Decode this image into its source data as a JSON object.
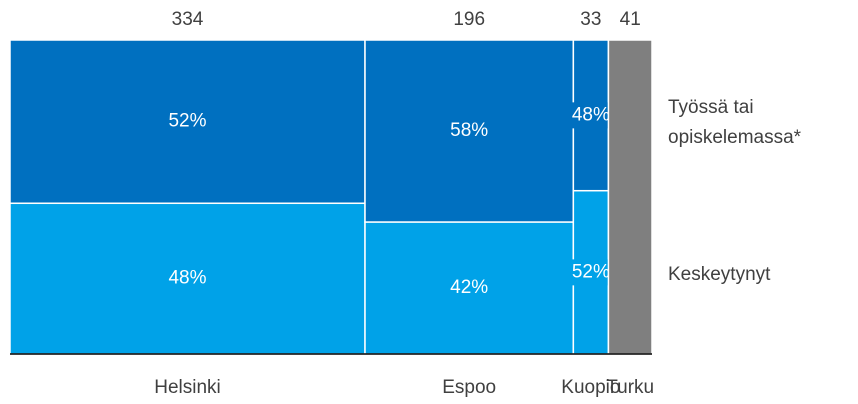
{
  "chart_data": {
    "type": "marimekko",
    "categories": [
      "Helsinki",
      "Espoo",
      "Kuopio",
      "Turku"
    ],
    "widths": [
      334,
      196,
      33,
      41
    ],
    "series": [
      {
        "name": "Työssä tai opiskelemassa*",
        "color": "#0070c0",
        "values": [
          52,
          58,
          48,
          null
        ],
        "value_labels": [
          "52%",
          "58%",
          "48%",
          null
        ]
      },
      {
        "name": "Keskeytynyt",
        "color": "#00a2e8",
        "values": [
          48,
          42,
          52,
          null
        ],
        "value_labels": [
          "48%",
          "42%",
          "52%",
          null
        ]
      }
    ],
    "missing_color": "#7f7f7f",
    "ylim": [
      0,
      100
    ]
  }
}
